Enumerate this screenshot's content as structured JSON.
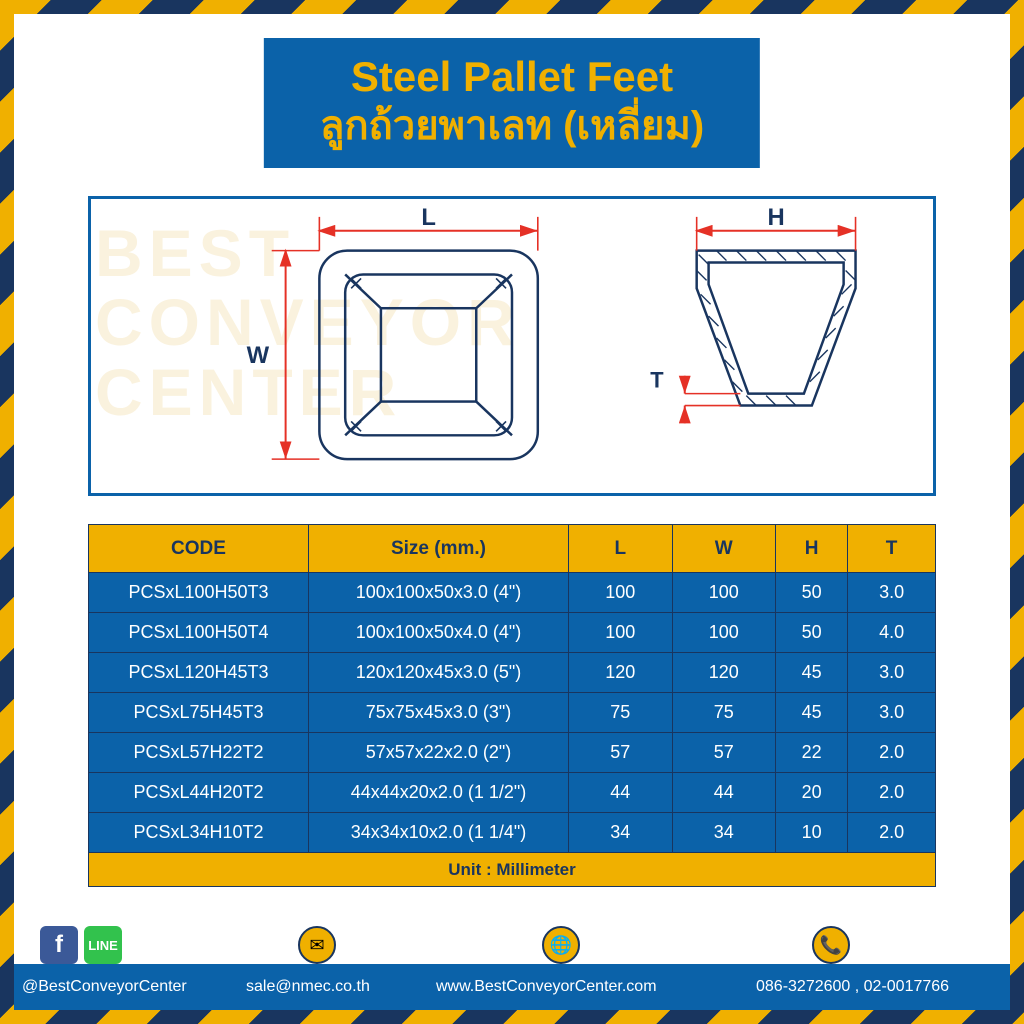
{
  "colors": {
    "blue": "#0b62a9",
    "darkblue": "#19355f",
    "yellow": "#f0b000",
    "white": "#ffffff",
    "red": "#e53126"
  },
  "title": {
    "en": "Steel Pallet Feet",
    "th": "ลูกถ้วยพาเลท (เหลี่ยม)"
  },
  "watermark": "BEST\nCONVEYOR\nCENTER",
  "diagram_labels": {
    "L": "L",
    "W": "W",
    "H": "H",
    "T": "T"
  },
  "table": {
    "headers": [
      "CODE",
      "Size (mm.)",
      "L",
      "W",
      "H",
      "T"
    ],
    "rows": [
      [
        "PCSxL100H50T3",
        "100x100x50x3.0 (4\")",
        "100",
        "100",
        "50",
        "3.0"
      ],
      [
        "PCSxL100H50T4",
        "100x100x50x4.0 (4\")",
        "100",
        "100",
        "50",
        "4.0"
      ],
      [
        "PCSxL120H45T3",
        "120x120x45x3.0 (5\")",
        "120",
        "120",
        "45",
        "3.0"
      ],
      [
        "PCSxL75H45T3",
        "75x75x45x3.0 (3\")",
        "75",
        "75",
        "45",
        "3.0"
      ],
      [
        "PCSxL57H22T2",
        "57x57x22x2.0 (2\")",
        "57",
        "57",
        "22",
        "2.0"
      ],
      [
        "PCSxL44H20T2",
        "44x44x20x2.0 (1 1/2\")",
        "44",
        "44",
        "20",
        "2.0"
      ],
      [
        "PCSxL34H10T2",
        "34x34x10x2.0 (1 1/4\")",
        "34",
        "34",
        "10",
        "2.0"
      ]
    ],
    "unit_label": "Unit : Millimeter"
  },
  "footer": {
    "handle": "@BestConveyorCenter",
    "email": "sale@nmec.co.th",
    "website": "www.BestConveyorCenter.com",
    "phone": "086-3272600 , 02-0017766"
  }
}
